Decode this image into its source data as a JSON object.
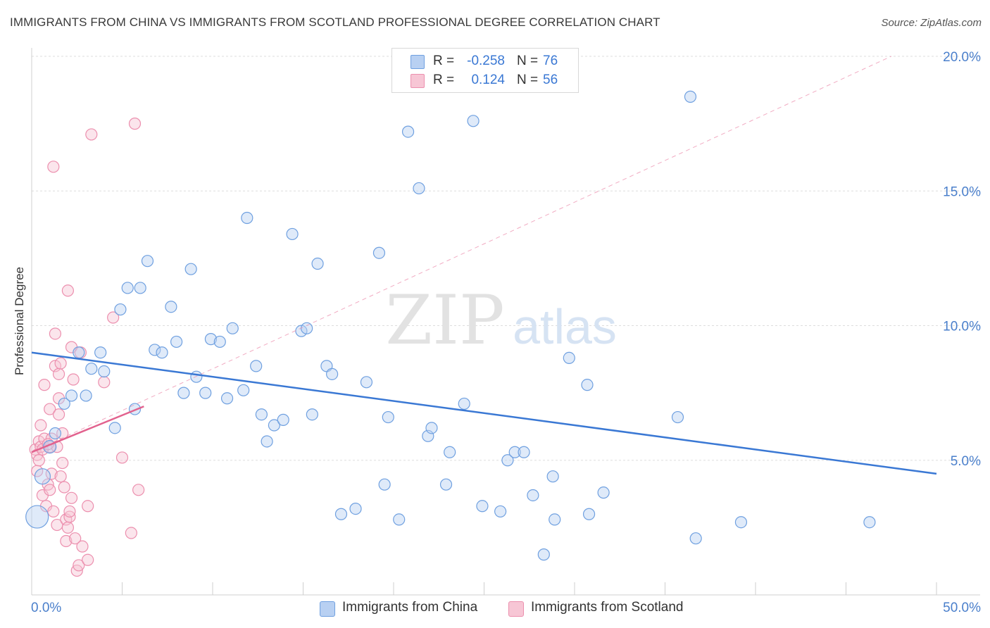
{
  "title": "IMMIGRANTS FROM CHINA VS IMMIGRANTS FROM SCOTLAND PROFESSIONAL DEGREE CORRELATION CHART",
  "source": "Source: ZipAtlas.com",
  "watermark": {
    "zip": "ZIP",
    "atlas": "atlas"
  },
  "colors": {
    "china": "#6fa0e0",
    "china_fill": "#b8d0f2",
    "china_line": "#3a78d4",
    "scotland": "#ec8fae",
    "scotland_fill": "#f7c6d5",
    "scotland_line": "#e2628e",
    "axis_text": "#4a7fcb",
    "grid": "#dddddd"
  },
  "stats": [
    {
      "r_label": "R =",
      "r_value": "-0.258",
      "n_label": "N =",
      "n_value": "76"
    },
    {
      "r_label": "R =",
      "r_value": "0.124",
      "n_label": "N =",
      "n_value": "56"
    }
  ],
  "legend": {
    "china": "Immigrants from China",
    "scotland": "Immigrants from Scotland"
  },
  "chart_data": {
    "type": "scatter",
    "title": "IMMIGRANTS FROM CHINA VS IMMIGRANTS FROM SCOTLAND PROFESSIONAL DEGREE CORRELATION CHART",
    "xlabel": "",
    "ylabel": "Professional Degree",
    "xlim": [
      0,
      50
    ],
    "ylim": [
      0,
      20.5
    ],
    "x_tick_labels": [
      "0.0%",
      "50.0%"
    ],
    "y_ticks": [
      5,
      10,
      15,
      20
    ],
    "y_tick_labels": [
      "5.0%",
      "10.0%",
      "15.0%",
      "20.0%"
    ],
    "grid": true,
    "legend_position": "bottom",
    "series": [
      {
        "name": "Immigrants from China",
        "r": -0.258,
        "n": 76,
        "trend": {
          "x": [
            0,
            50
          ],
          "y": [
            9.0,
            4.5
          ]
        },
        "points": [
          [
            0.3,
            2.9,
            16
          ],
          [
            0.6,
            4.4,
            11
          ],
          [
            1.0,
            5.5,
            9
          ],
          [
            1.3,
            6.0,
            8
          ],
          [
            1.8,
            7.1,
            8
          ],
          [
            2.2,
            7.4,
            8
          ],
          [
            2.6,
            9.0,
            8
          ],
          [
            3.0,
            7.4,
            8
          ],
          [
            3.3,
            8.4,
            8
          ],
          [
            3.8,
            9.0,
            8
          ],
          [
            4.0,
            8.3,
            8
          ],
          [
            4.6,
            6.2,
            8
          ],
          [
            4.9,
            10.6,
            8
          ],
          [
            5.3,
            11.4,
            8
          ],
          [
            5.7,
            6.9,
            8
          ],
          [
            6.0,
            11.4,
            8
          ],
          [
            6.4,
            12.4,
            8
          ],
          [
            6.8,
            9.1,
            8
          ],
          [
            7.2,
            9.0,
            8
          ],
          [
            7.7,
            10.7,
            8
          ],
          [
            8.0,
            9.4,
            8
          ],
          [
            8.4,
            7.5,
            8
          ],
          [
            8.8,
            12.1,
            8
          ],
          [
            9.1,
            8.1,
            8
          ],
          [
            9.6,
            7.5,
            8
          ],
          [
            9.9,
            9.5,
            8
          ],
          [
            10.4,
            9.4,
            8
          ],
          [
            10.8,
            7.3,
            8
          ],
          [
            11.1,
            9.9,
            8
          ],
          [
            11.7,
            7.6,
            8
          ],
          [
            11.9,
            14.0,
            8
          ],
          [
            12.4,
            8.5,
            8
          ],
          [
            12.7,
            6.7,
            8
          ],
          [
            13.0,
            5.7,
            8
          ],
          [
            13.4,
            6.3,
            8
          ],
          [
            13.9,
            6.5,
            8
          ],
          [
            14.4,
            13.4,
            8
          ],
          [
            14.9,
            9.8,
            8
          ],
          [
            15.2,
            9.9,
            8
          ],
          [
            15.5,
            6.7,
            8
          ],
          [
            15.8,
            12.3,
            8
          ],
          [
            16.3,
            8.5,
            8
          ],
          [
            16.6,
            8.2,
            8
          ],
          [
            17.1,
            3.0,
            8
          ],
          [
            17.9,
            3.2,
            8
          ],
          [
            18.5,
            7.9,
            8
          ],
          [
            19.2,
            12.7,
            8
          ],
          [
            19.5,
            4.1,
            8
          ],
          [
            19.7,
            6.6,
            8
          ],
          [
            20.3,
            2.8,
            8
          ],
          [
            20.8,
            17.2,
            8
          ],
          [
            21.4,
            15.1,
            8
          ],
          [
            21.9,
            5.9,
            8
          ],
          [
            22.1,
            6.2,
            8
          ],
          [
            22.9,
            4.1,
            8
          ],
          [
            23.1,
            5.3,
            8
          ],
          [
            23.9,
            7.1,
            8
          ],
          [
            24.4,
            17.6,
            8
          ],
          [
            24.9,
            3.3,
            8
          ],
          [
            25.9,
            3.1,
            8
          ],
          [
            26.3,
            5.0,
            8
          ],
          [
            26.7,
            5.3,
            8
          ],
          [
            27.2,
            5.3,
            8
          ],
          [
            27.7,
            3.7,
            8
          ],
          [
            28.3,
            1.5,
            8
          ],
          [
            28.8,
            4.4,
            8
          ],
          [
            28.9,
            2.8,
            8
          ],
          [
            29.7,
            8.8,
            8
          ],
          [
            30.7,
            7.8,
            8
          ],
          [
            30.8,
            3.0,
            8
          ],
          [
            31.6,
            3.8,
            8
          ],
          [
            35.7,
            6.6,
            8
          ],
          [
            36.4,
            18.5,
            8
          ],
          [
            36.7,
            2.1,
            8
          ],
          [
            39.2,
            2.7,
            8
          ],
          [
            46.3,
            2.7,
            8
          ]
        ]
      },
      {
        "name": "Immigrants from Scotland",
        "r": 0.124,
        "n": 56,
        "trend": {
          "x": [
            0,
            6.2
          ],
          "y": [
            5.3,
            7.0
          ]
        },
        "trend_extended": {
          "x": [
            0,
            47.5
          ],
          "y": [
            5.3,
            20.0
          ]
        },
        "points": [
          [
            0.2,
            5.4,
            8
          ],
          [
            0.3,
            5.2,
            8
          ],
          [
            0.3,
            4.6,
            8
          ],
          [
            0.4,
            5.7,
            8
          ],
          [
            0.5,
            6.3,
            8
          ],
          [
            0.5,
            5.5,
            8
          ],
          [
            0.6,
            3.7,
            8
          ],
          [
            0.7,
            7.8,
            8
          ],
          [
            0.7,
            5.8,
            8
          ],
          [
            0.8,
            3.3,
            8
          ],
          [
            0.9,
            4.1,
            8
          ],
          [
            1.0,
            5.5,
            8
          ],
          [
            1.0,
            6.9,
            8
          ],
          [
            1.1,
            4.5,
            8
          ],
          [
            1.1,
            5.8,
            8
          ],
          [
            1.2,
            15.9,
            8
          ],
          [
            1.2,
            3.1,
            8
          ],
          [
            1.3,
            8.5,
            8
          ],
          [
            1.3,
            9.7,
            8
          ],
          [
            1.4,
            5.5,
            8
          ],
          [
            1.4,
            2.6,
            8
          ],
          [
            1.5,
            6.7,
            8
          ],
          [
            1.5,
            7.3,
            8
          ],
          [
            1.5,
            8.2,
            8
          ],
          [
            1.6,
            8.6,
            8
          ],
          [
            1.7,
            6.0,
            8
          ],
          [
            1.7,
            4.9,
            8
          ],
          [
            1.8,
            4.0,
            8
          ],
          [
            1.9,
            2.8,
            8
          ],
          [
            1.9,
            2.0,
            8
          ],
          [
            2.0,
            11.3,
            8
          ],
          [
            2.0,
            2.5,
            8
          ],
          [
            2.1,
            2.9,
            8
          ],
          [
            2.1,
            3.1,
            8
          ],
          [
            2.2,
            9.2,
            8
          ],
          [
            2.2,
            3.6,
            8
          ],
          [
            2.3,
            8.0,
            8
          ],
          [
            2.4,
            2.1,
            8
          ],
          [
            2.5,
            0.9,
            8
          ],
          [
            2.6,
            1.1,
            8
          ],
          [
            2.7,
            9.0,
            8
          ],
          [
            2.8,
            1.8,
            8
          ],
          [
            3.1,
            3.3,
            8
          ],
          [
            3.1,
            1.3,
            8
          ],
          [
            3.3,
            17.1,
            8
          ],
          [
            4.0,
            7.9,
            8
          ],
          [
            4.5,
            10.3,
            8
          ],
          [
            5.0,
            5.1,
            8
          ],
          [
            5.7,
            17.5,
            8
          ],
          [
            5.5,
            2.3,
            8
          ],
          [
            5.9,
            3.9,
            8
          ],
          [
            0.4,
            5.0,
            8
          ],
          [
            0.6,
            5.4,
            8
          ],
          [
            0.9,
            5.6,
            8
          ],
          [
            1.0,
            3.9,
            8
          ],
          [
            1.6,
            4.4,
            8
          ]
        ]
      }
    ]
  }
}
